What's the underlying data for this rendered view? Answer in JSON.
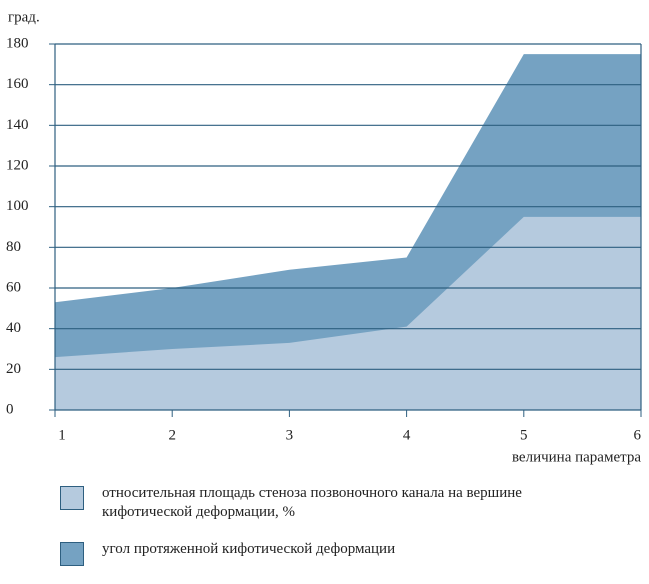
{
  "chart_data": {
    "type": "area",
    "y_label": "град.",
    "x_label": "величина параметра",
    "x": [
      1,
      2,
      3,
      4,
      5,
      6
    ],
    "series": [
      {
        "name": "угол протяженной кифотической деформации",
        "color": "#75a2c2",
        "values": [
          53,
          60,
          69,
          75,
          175,
          175
        ]
      },
      {
        "name": "относительная площадь стеноза позвоночного канала на вершине кифотической деформации, %",
        "color": "#b5cade",
        "values": [
          26,
          30,
          33,
          41,
          95,
          95
        ]
      }
    ],
    "xlim": [
      1,
      6
    ],
    "xticks": [
      1,
      2,
      3,
      4,
      5,
      6
    ],
    "ylim": [
      0,
      180
    ],
    "yticks": [
      0,
      20,
      40,
      60,
      80,
      100,
      120,
      140,
      160,
      180
    ],
    "grid": true
  }
}
